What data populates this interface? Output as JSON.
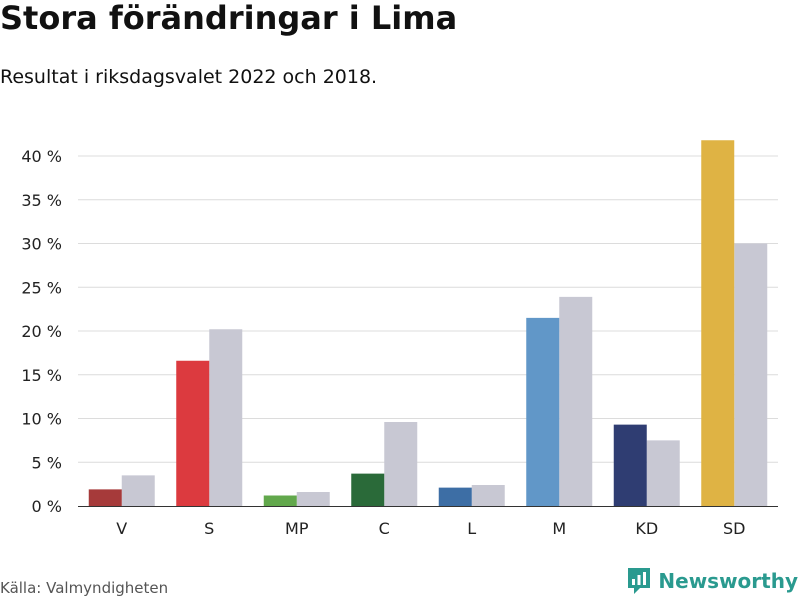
{
  "title": "Stora förändringar i Lima",
  "subtitle": "Resultat i riksdagsvalet 2022 och 2018.",
  "source": "Källa: Valmyndigheten",
  "brand": {
    "name": "Newsworthy",
    "icon": "newsworthy-logo-icon",
    "color": "#2a9a8f"
  },
  "chart_data": {
    "type": "bar",
    "categories": [
      "V",
      "S",
      "MP",
      "C",
      "L",
      "M",
      "KD",
      "SD"
    ],
    "series": [
      {
        "year": "2022",
        "values": [
          1.9,
          16.6,
          1.2,
          3.7,
          2.1,
          21.5,
          9.3,
          41.8
        ],
        "colors": [
          "#a63a3a",
          "#dc3a3f",
          "#62a84c",
          "#2a6a39",
          "#3d6ea5",
          "#6197c8",
          "#2f3d72",
          "#dfb344"
        ]
      },
      {
        "year": "2018",
        "values": [
          3.5,
          20.2,
          1.6,
          9.6,
          2.4,
          23.9,
          7.5,
          30.0
        ],
        "color": "#c8c8d3"
      }
    ],
    "y_ticks": [
      "0 %",
      "5 %",
      "10 %",
      "15 %",
      "20 %",
      "25 %",
      "30 %",
      "35 %",
      "40 %"
    ],
    "ylim": [
      0,
      40
    ],
    "grid": true,
    "legend": "none"
  }
}
